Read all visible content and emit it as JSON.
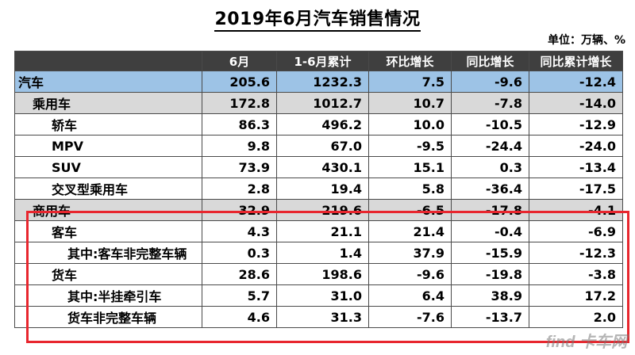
{
  "title": "2019年6月汽车销售情况",
  "unit_note": "单位：万辆、%",
  "table": {
    "headers": [
      "",
      "6月",
      "1-6月累计",
      "环比增长",
      "同比增长",
      "同比累计增长"
    ],
    "rows": [
      {
        "level": 0,
        "cells": [
          "汽车",
          "205.6",
          "1232.3",
          "7.5",
          "-9.6",
          "-12.4"
        ]
      },
      {
        "level": 1,
        "cells": [
          "乘用车",
          "172.8",
          "1012.7",
          "10.7",
          "-7.8",
          "-14.0"
        ]
      },
      {
        "level": 2,
        "cells": [
          "轿车",
          "86.3",
          "496.2",
          "10.0",
          "-10.5",
          "-12.9"
        ]
      },
      {
        "level": 2,
        "cells": [
          "MPV",
          "9.8",
          "67.0",
          "-9.5",
          "-24.4",
          "-24.0"
        ]
      },
      {
        "level": 2,
        "cells": [
          "SUV",
          "73.9",
          "430.1",
          "15.1",
          "0.3",
          "-13.4"
        ]
      },
      {
        "level": 2,
        "cells": [
          "交叉型乘用车",
          "2.8",
          "19.4",
          "5.8",
          "-36.4",
          "-17.5"
        ]
      },
      {
        "level": 1,
        "cells": [
          "商用车",
          "32.9",
          "219.6",
          "-6.5",
          "-17.8",
          "-4.1"
        ]
      },
      {
        "level": 2,
        "cells": [
          "客车",
          "4.3",
          "21.1",
          "21.4",
          "-0.4",
          "-6.9"
        ]
      },
      {
        "level": 3,
        "cells": [
          "其中:客车非完整车辆",
          "0.3",
          "1.4",
          "37.9",
          "-15.9",
          "-12.3"
        ]
      },
      {
        "level": 2,
        "cells": [
          "货车",
          "28.6",
          "198.6",
          "-9.6",
          "-19.8",
          "-3.8"
        ]
      },
      {
        "level": 3,
        "cells": [
          "其中:半挂牵引车",
          "5.7",
          "31.0",
          "6.4",
          "38.9",
          "17.2"
        ]
      },
      {
        "level": 3,
        "cells": [
          "货车非完整车辆",
          "4.6",
          "31.3",
          "-7.6",
          "-13.7",
          "2.0"
        ]
      }
    ]
  },
  "highlight_color": "#e8262e",
  "watermark": "find 卡车网"
}
